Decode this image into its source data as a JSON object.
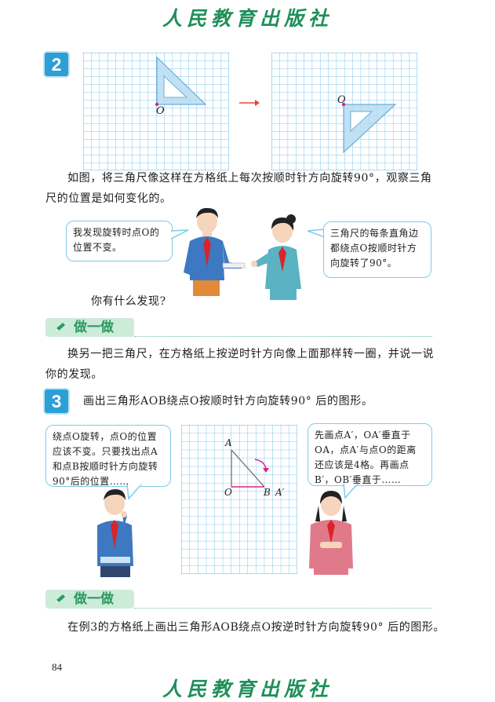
{
  "publisher": "人民教育出版社",
  "example2": {
    "number": "2",
    "point_label": "O",
    "paragraph": "如图，将三角尺像这样在方格纸上每次按顺时针方向旋转90°，观察三角尺的位置是如何变化的。",
    "bubble_boy": "我发现旋转时点O的位置不变。",
    "bubble_girl": "三角尺的每条直角边都绕点O按顺时针方向旋转了90°。",
    "question": "你有什么发现?"
  },
  "activity1": {
    "banner": "做一做",
    "text": "换另一把三角尺，在方格纸上按逆时针方向像上面那样转一圈，并说一说你的发现。"
  },
  "example3": {
    "number": "3",
    "title": "画出三角形AOB绕点O按顺时针方向旋转90° 后的图形。",
    "bubble_left": "绕点O旋转，点O的位置应该不变。只要找出点A和点B按顺时针方向旋转90°后的位置……",
    "bubble_right": "先画点A′，OA′垂直于OA，点A′与点O的距离还应该是4格。再画点B′，OB′垂直于……",
    "labels": {
      "A": "A",
      "O": "O",
      "B": "B",
      "A_prime": "A′"
    }
  },
  "activity2": {
    "banner": "做一做",
    "text": "在例3的方格纸上画出三角形AOB绕点O按逆时针方向旋转90° 后的图形。"
  },
  "page_number": "84",
  "colors": {
    "grid": "#5bb8e8",
    "accent": "#2b9fd6",
    "banner": "#cdebd9",
    "publisher": "#1f8f5a",
    "point": "#e0218a"
  }
}
